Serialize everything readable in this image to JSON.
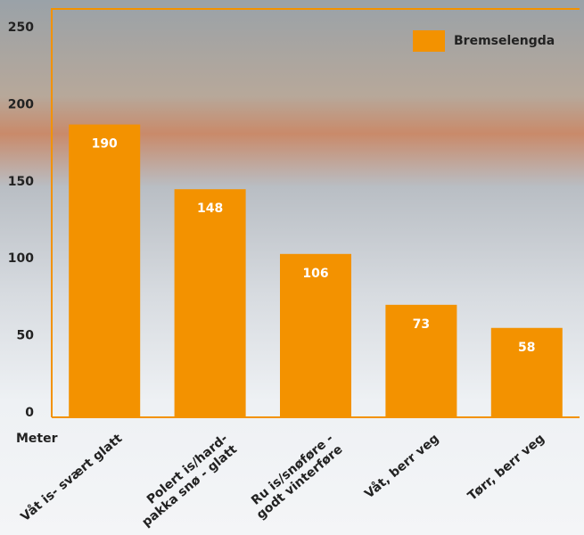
{
  "chart_data": {
    "type": "bar",
    "categories": [
      "Våt is- svært glatt",
      "Polert is/hard-\npakka snø - glatt",
      "Ru is/snøføre -\ngodt vinterføre",
      "Våt, berr veg",
      "Tørr, berr veg"
    ],
    "series": [
      {
        "name": "Bremselengda",
        "color": "#f39200",
        "values": [
          190,
          148,
          106,
          73,
          58
        ]
      }
    ],
    "y_label": "Meter",
    "ylim": [
      0,
      265
    ],
    "yticks": [
      0,
      50,
      100,
      150,
      200,
      250
    ],
    "legend": "top-right",
    "data_labels": true
  }
}
